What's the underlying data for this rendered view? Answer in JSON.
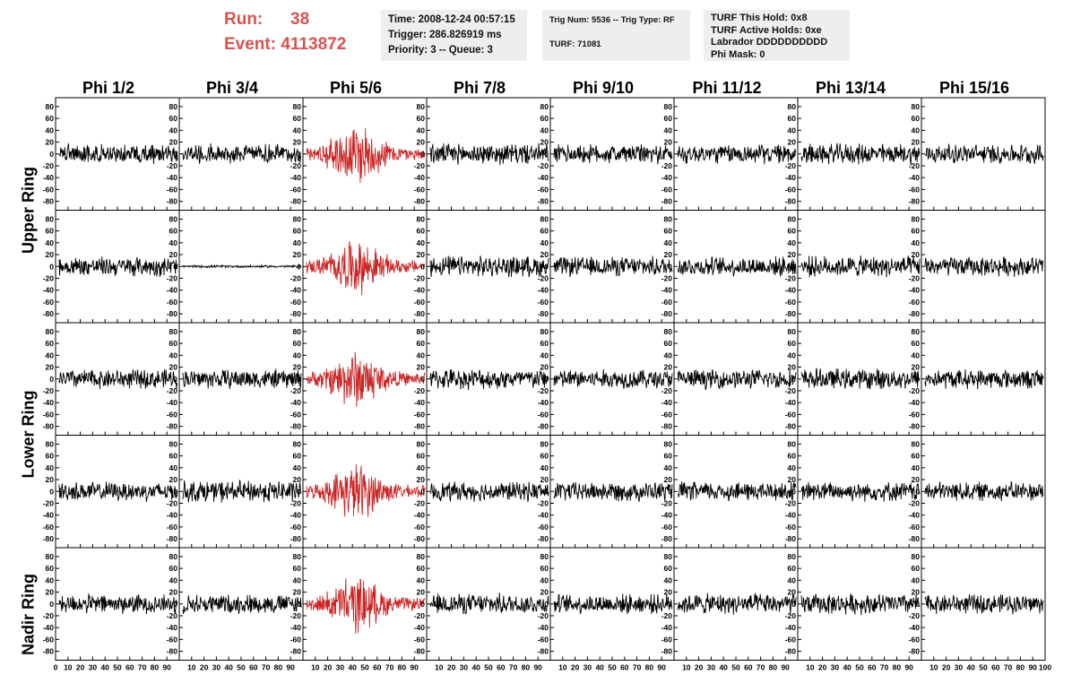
{
  "header": {
    "run_label": "Run:",
    "run_value": "38",
    "event_label": "Event:",
    "event_value": "4113872",
    "time": "Time: 2008-12-24 00:57:15",
    "trigger": "Trigger: 286.826919 ms",
    "priority": "Priority: 3 -- Queue: 3",
    "trig_num": "Trig Num: 5536 -- Trig Type: RF",
    "turf": "TURF: 71081",
    "turf_this_hold": "TURF This Hold: 0x8",
    "turf_active_holds": "TURF Active Holds: 0xe",
    "labrador": "Labrador DDDDDDDDDD",
    "phi_mask": "Phi Mask: 0"
  },
  "columns": [
    "Phi 1/2",
    "Phi 3/4",
    "Phi 5/6",
    "Phi 7/8",
    "Phi 9/10",
    "Phi 11/12",
    "Phi 13/14",
    "Phi 15/16"
  ],
  "rings": [
    "Upper Ring",
    "Lower Ring",
    "Nadir Ring"
  ],
  "colors": {
    "accent": "#d9534f",
    "trace": "#000000",
    "highlight_trace": "#cc2222",
    "info_bg": "#eeeeee"
  },
  "chart_data": {
    "type": "line",
    "rows": 5,
    "cols": 8,
    "highlight_column": 2,
    "xlim": [
      0,
      100
    ],
    "ylim": [
      -95,
      95
    ],
    "y_ticks": [
      80,
      60,
      40,
      20,
      0,
      -20,
      -40,
      -60,
      -80
    ],
    "x_tick_labels": [
      "0",
      "10",
      "20",
      "30",
      "40",
      "50",
      "60",
      "70",
      "80",
      "90",
      "100"
    ],
    "amplitudes": [
      [
        16,
        16,
        45,
        17,
        16,
        16,
        17,
        16
      ],
      [
        16,
        2,
        35,
        17,
        16,
        16,
        17,
        16
      ],
      [
        16,
        16,
        40,
        17,
        16,
        16,
        17,
        16
      ],
      [
        16,
        18,
        38,
        16,
        16,
        16,
        16,
        16
      ],
      [
        16,
        16,
        38,
        17,
        16,
        17,
        17,
        16
      ]
    ]
  }
}
